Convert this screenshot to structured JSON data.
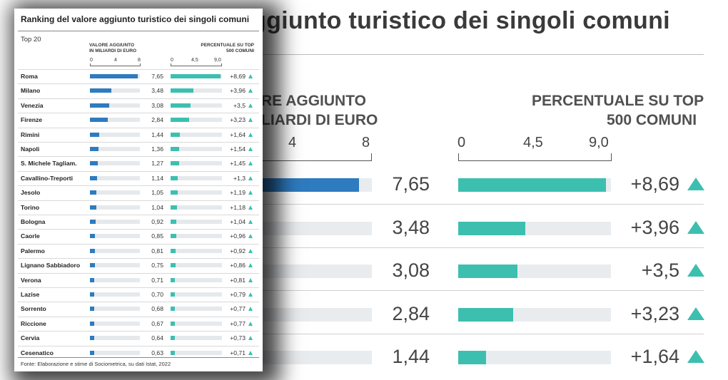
{
  "chart_data": {
    "type": "bar",
    "title": "Ranking del valore aggiunto turistico dei singoli comuni",
    "subtitle": "Top 20",
    "source": "Fonte: Elaborazione e stime di Sociometrica, su dati Istat, 2022",
    "colors": {
      "value_bar": "#2e7bbf",
      "percent_bar": "#3dbfb0",
      "track": "#e6e9ec"
    },
    "trend_icon": "up-triangle-icon",
    "value_column": {
      "label_line1": "VALORE AGGIUNTO",
      "label_line2": "IN MILIARDI DI EURO",
      "ticks": [
        "0",
        "4",
        "8"
      ],
      "range": [
        0,
        8
      ]
    },
    "percent_column": {
      "label_line1": "PERCENTUALE SU TOP",
      "label_line2": "500 COMUNI",
      "ticks": [
        "0",
        "4,5",
        "9,0"
      ],
      "range": [
        0,
        9
      ]
    },
    "bg_header": {
      "title_fragment": "ggiunto turistico dei singoli comuni",
      "value_line1": "RE AGGIUNTO",
      "value_line2": "LIARDI DI EURO",
      "value_ticks": [
        "4",
        "8"
      ]
    },
    "rows": [
      {
        "name": "Roma",
        "value": 7.65,
        "value_label": "7,65",
        "pct": 8.69,
        "pct_label": "+8,69"
      },
      {
        "name": "Milano",
        "value": 3.48,
        "value_label": "3,48",
        "pct": 3.96,
        "pct_label": "+3,96"
      },
      {
        "name": "Venezia",
        "value": 3.08,
        "value_label": "3,08",
        "pct": 3.5,
        "pct_label": "+3,5"
      },
      {
        "name": "Firenze",
        "value": 2.84,
        "value_label": "2,84",
        "pct": 3.23,
        "pct_label": "+3,23"
      },
      {
        "name": "Rimini",
        "value": 1.44,
        "value_label": "1,44",
        "pct": 1.64,
        "pct_label": "+1,64"
      },
      {
        "name": "Napoli",
        "value": 1.36,
        "value_label": "1,36",
        "pct": 1.54,
        "pct_label": "+1,54"
      },
      {
        "name": "S. Michele Tagliam.",
        "value": 1.27,
        "value_label": "1,27",
        "pct": 1.45,
        "pct_label": "+1,45"
      },
      {
        "name": "Cavallino-Treporti",
        "value": 1.14,
        "value_label": "1,14",
        "pct": 1.3,
        "pct_label": "+1,3"
      },
      {
        "name": "Jesolo",
        "value": 1.05,
        "value_label": "1,05",
        "pct": 1.19,
        "pct_label": "+1,19"
      },
      {
        "name": "Torino",
        "value": 1.04,
        "value_label": "1,04",
        "pct": 1.18,
        "pct_label": "+1,18"
      },
      {
        "name": "Bologna",
        "value": 0.92,
        "value_label": "0,92",
        "pct": 1.04,
        "pct_label": "+1,04"
      },
      {
        "name": "Caorle",
        "value": 0.85,
        "value_label": "0,85",
        "pct": 0.96,
        "pct_label": "+0,96"
      },
      {
        "name": "Palermo",
        "value": 0.81,
        "value_label": "0,81",
        "pct": 0.92,
        "pct_label": "+0,92"
      },
      {
        "name": "Lignano Sabbiadoro",
        "value": 0.75,
        "value_label": "0,75",
        "pct": 0.86,
        "pct_label": "+0,86"
      },
      {
        "name": "Verona",
        "value": 0.71,
        "value_label": "0,71",
        "pct": 0.81,
        "pct_label": "+0,81"
      },
      {
        "name": "Lazise",
        "value": 0.7,
        "value_label": "0,70",
        "pct": 0.79,
        "pct_label": "+0,79"
      },
      {
        "name": "Sorrento",
        "value": 0.68,
        "value_label": "0,68",
        "pct": 0.77,
        "pct_label": "+0,77"
      },
      {
        "name": "Riccione",
        "value": 0.67,
        "value_label": "0,67",
        "pct": 0.77,
        "pct_label": "+0,77"
      },
      {
        "name": "Cervia",
        "value": 0.64,
        "value_label": "0,64",
        "pct": 0.73,
        "pct_label": "+0,73"
      },
      {
        "name": "Cesenatico",
        "value": 0.63,
        "value_label": "0,63",
        "pct": 0.71,
        "pct_label": "+0,71"
      }
    ]
  }
}
